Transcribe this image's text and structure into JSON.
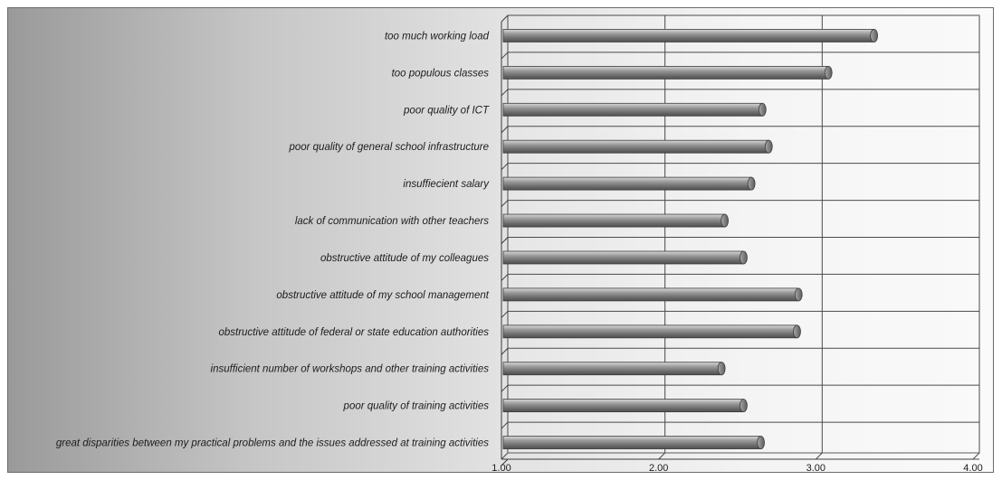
{
  "chart_data": {
    "type": "bar",
    "orientation": "horizontal",
    "title": "",
    "xlabel": "",
    "ylabel": "",
    "xlim": [
      1.0,
      4.0
    ],
    "x_ticks": [
      "1.00",
      "2.00",
      "3.00",
      "4.00"
    ],
    "grid": true,
    "legend": "none",
    "bar_color": "#8c8c8c",
    "categories": [
      "too much working load",
      "too populous classes",
      "poor quality of ICT",
      "poor quality of general school infrastructure",
      "insuffiecient salary",
      "lack of communication  with other teachers",
      "obstructive attitude  of my colleagues",
      "obstructive attitude of my school management",
      "obstructive attitude  of federal  or state education authorities",
      "insufficient number of workshops and other training activities",
      "poor quality of training activities",
      "great disparities  between my practical problems and the issues addressed at training activities"
    ],
    "values": [
      3.37,
      3.08,
      2.66,
      2.7,
      2.59,
      2.42,
      2.54,
      2.89,
      2.88,
      2.4,
      2.54,
      2.65
    ]
  }
}
